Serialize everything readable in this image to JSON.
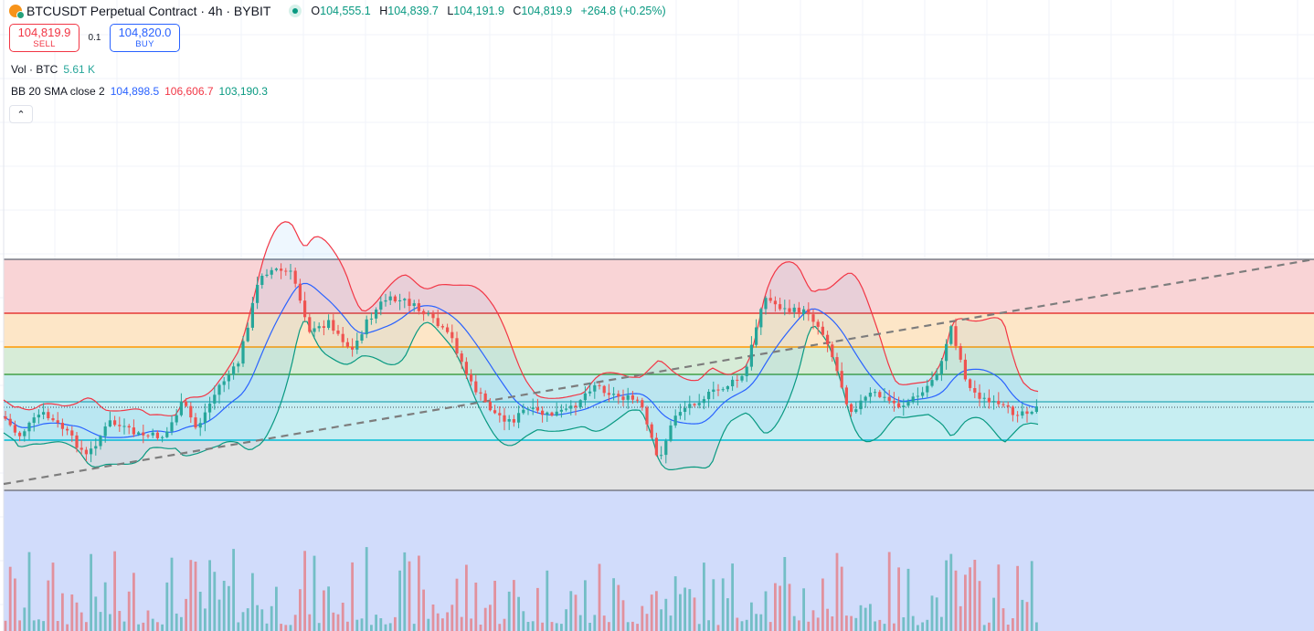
{
  "header": {
    "symbol_title": "BTCUSDT Perpetual Contract · 4h · BYBIT",
    "logo_icon": "bitcoin-tether-logo-icon",
    "status_icon": "market-open-dot-icon",
    "ohlc": {
      "o_label": "O",
      "o_value": "104,555.1",
      "h_label": "H",
      "h_value": "104,839.7",
      "l_label": "L",
      "l_value": "104,191.9",
      "c_label": "C",
      "c_value": "104,819.9",
      "change": "+264.8 (+0.25%)"
    }
  },
  "trade": {
    "sell_price": "104,819.9",
    "sell_label": "SELL",
    "spread": "0.1",
    "buy_price": "104,820.0",
    "buy_label": "BUY"
  },
  "volume_indicator": {
    "label": "Vol · BTC",
    "value": "5.61 K"
  },
  "bb_indicator": {
    "label": "BB 20 SMA close 2",
    "basis": "104,898.5",
    "upper": "106,606.7",
    "lower": "103,190.3"
  },
  "collapse_icon": "chevron-up-icon",
  "colors": {
    "up": "#26a69a",
    "down": "#ef5350",
    "bb_basis": "#2962ff",
    "bb_upper": "#f23645",
    "bb_lower": "#089981",
    "zone_red": "#f9d4d6",
    "zone_orange": "#fde6c7",
    "zone_green": "#d7ecd7",
    "zone_teal": "#c8ecef",
    "zone_cyan": "#c7eef2",
    "zone_grey": "#e3e3e3",
    "zone_volume": "#d1dcfb"
  },
  "chart_data": {
    "type": "candlestick",
    "symbol": "BTCUSDT",
    "interval": "4h",
    "last_close": 104819.9,
    "bollinger_bands": {
      "period": 20,
      "stddev": 2,
      "basis": 104898.5,
      "upper": 106606.7,
      "lower": 103190.3
    },
    "volume_last": 5610
  }
}
